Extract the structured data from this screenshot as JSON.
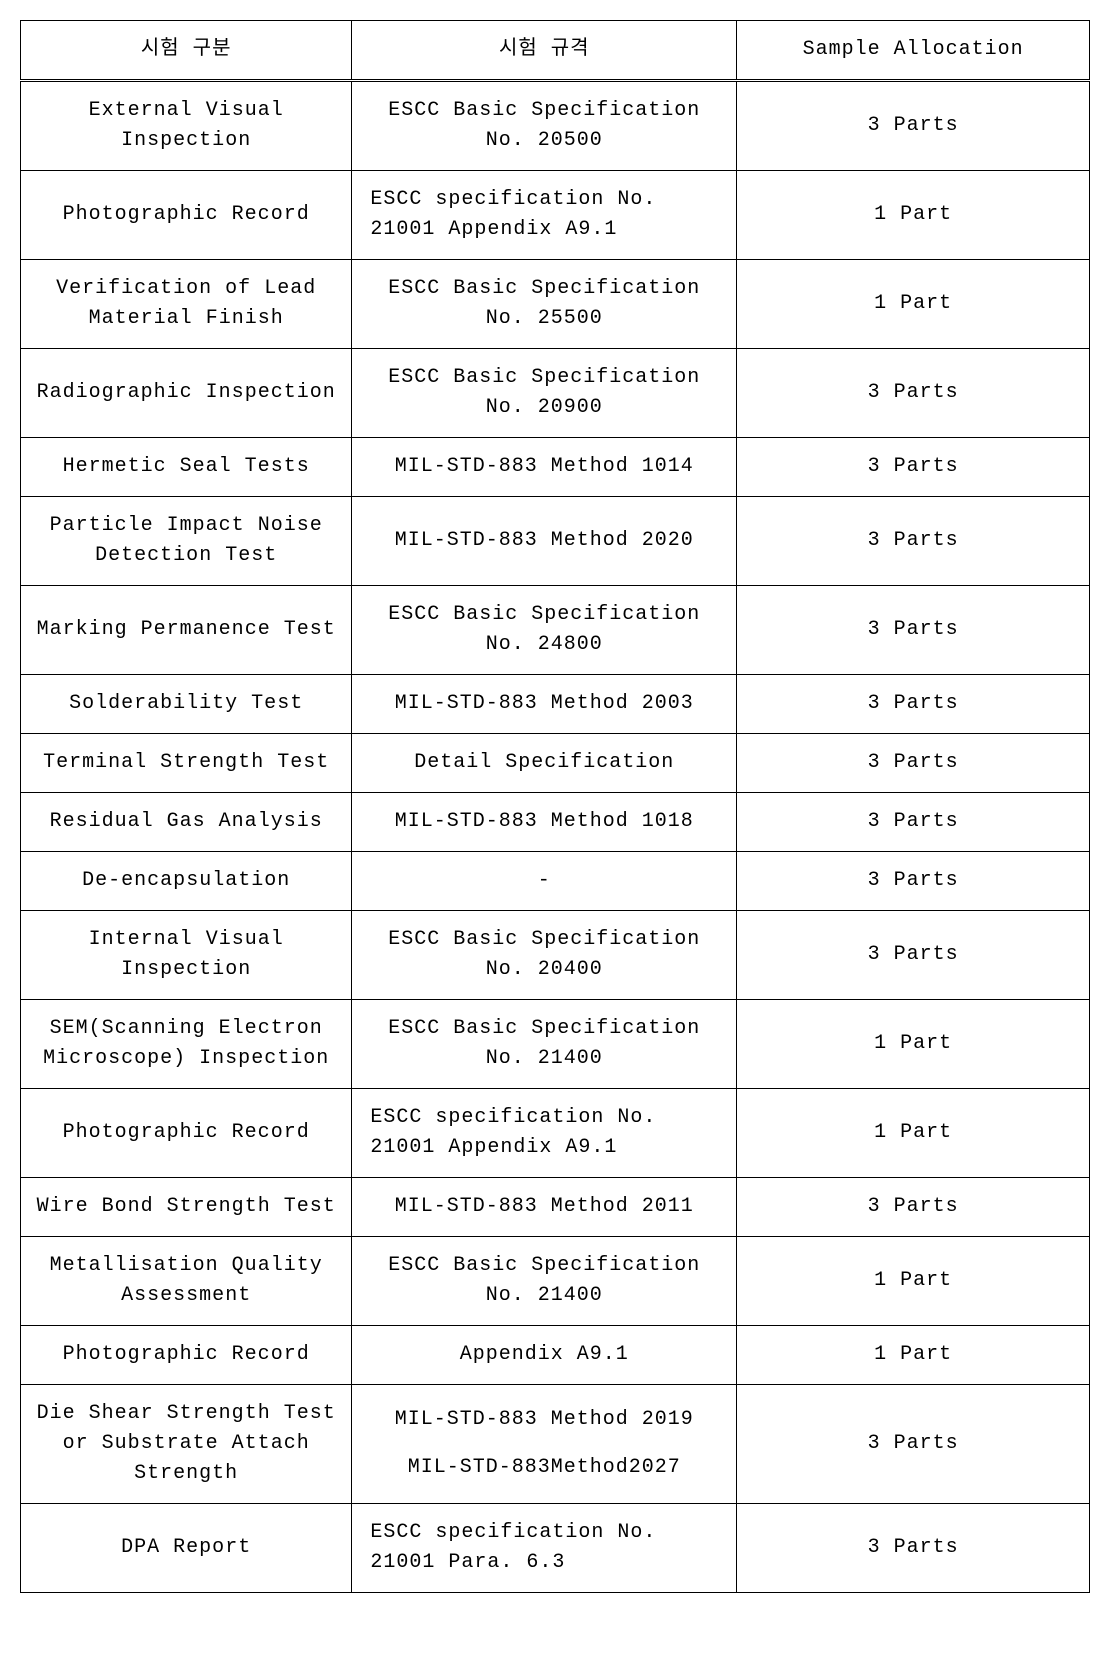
{
  "table": {
    "headers": {
      "col1": "시험 구분",
      "col2": "시험 규격",
      "col3": "Sample Allocation"
    },
    "rows": [
      {
        "test": "External  Visual Inspection",
        "spec": "ESCC  Basic Specification No. 20500",
        "spec_align": "center",
        "allocation": "3  Parts"
      },
      {
        "test": "Photographic  Record",
        "spec": "ESCC   specification   No. 21001 Appendix  A9.1",
        "spec_align": "left",
        "allocation": "1  Part"
      },
      {
        "test": "Verification  of Lead Material Finish",
        "spec": "ESCC  Basic Specification No. 25500",
        "spec_align": "center",
        "allocation": "1  Part"
      },
      {
        "test": "Radiographic  Inspection",
        "spec": "ESCC  Basic Specification No. 20900",
        "spec_align": "center",
        "allocation": "3  Parts"
      },
      {
        "test": "Hermetic  Seal Tests",
        "spec": "MIL-STD-883  Method 1014",
        "spec_align": "center",
        "allocation": "3  Parts"
      },
      {
        "test": "Particle  Impact Noise Detection Test",
        "spec": "MIL-STD-883  Method 2020",
        "spec_align": "center",
        "allocation": "3  Parts"
      },
      {
        "test": "Marking  Permanence Test",
        "spec": "ESCC  Basic Specification No. 24800",
        "spec_align": "center",
        "allocation": "3  Parts"
      },
      {
        "test": "Solderability  Test",
        "spec": "MIL-STD-883  Method 2003",
        "spec_align": "center",
        "allocation": "3  Parts"
      },
      {
        "test": "Terminal  Strength Test",
        "spec": "Detail  Specification",
        "spec_align": "center",
        "allocation": "3  Parts"
      },
      {
        "test": "Residual  Gas Analysis",
        "spec": "MIL-STD-883  Method 1018",
        "spec_align": "center",
        "allocation": "3  Parts"
      },
      {
        "test": "De-encapsulation",
        "spec": "-",
        "spec_align": "center",
        "allocation": "3  Parts"
      },
      {
        "test": "Internal  Visual Inspection",
        "spec": "ESCC Basic Specification No. 20400",
        "spec_align": "center",
        "allocation": "3  Parts"
      },
      {
        "test": "SEM(Scanning Electron Microscope)  Inspection",
        "spec": "ESCC Basic Specification No. 21400",
        "spec_align": "center",
        "allocation": "1  Part"
      },
      {
        "test": "Photographic  Record",
        "spec": "ESCC   specification   No. 21001 Appendix  A9.1",
        "spec_align": "left",
        "allocation": "1  Part"
      },
      {
        "test": "Wire  Bond Strength Test",
        "spec": "MIL-STD-883  Method 2011",
        "spec_align": "center",
        "allocation": "3  Parts"
      },
      {
        "test": "Metallisation Quality Assessment",
        "spec": "ESCC  Basic Specification No. 21400",
        "spec_align": "center",
        "allocation": "1  Part"
      },
      {
        "test": "Photographic  Record",
        "spec": "Appendix  A9.1",
        "spec_align": "center",
        "allocation": "1  Part"
      },
      {
        "test": "Die  Shear Strength Test or Substrate Attach Strength",
        "spec_multi": [
          "MIL-STD-883 Method 2019",
          "MIL-STD-883Method2027"
        ],
        "spec_align": "center",
        "allocation": "3  Parts"
      },
      {
        "test": "DPA  Report",
        "spec": "ESCC   specification   No. 21001 Para.   6.3",
        "spec_align": "left",
        "allocation": "3  Parts"
      }
    ]
  }
}
